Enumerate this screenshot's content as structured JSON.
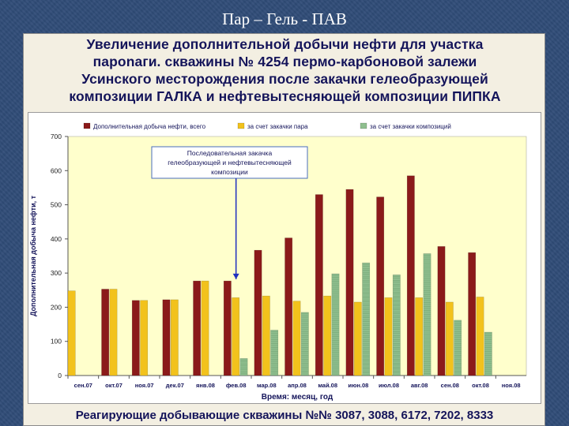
{
  "slide": {
    "title": "Пар – Гель - ПАВ",
    "heading_lines": [
      "Увеличение дополнительной добычи нефти для участка",
      "пароnaги. скважины № 4254 пермо-карбоновой залежи",
      "Усинского месторождения после закачки гелеобразующей",
      "композиции ГАЛКА и нефтевытесняющей композиции ПИПКА"
    ],
    "footer": "Реагирующие добывающие скважины №№ 3087, 3088, 6172, 7202, 8333"
  },
  "colors": {
    "total": "#8b1a1a",
    "steam": "#f2c21c",
    "composition": "#8fbf8f",
    "plot_bg": "#ffffcc",
    "annotation_border": "#4a6ebd",
    "annotation_arrow": "#1f2fbf"
  },
  "chart_data": {
    "type": "bar",
    "title": "",
    "xlabel": "Время: месяц, год",
    "ylabel": "Дополнительная добыча нефти, т",
    "ylim": [
      0,
      700
    ],
    "yticks": [
      0,
      100,
      200,
      300,
      400,
      500,
      600,
      700
    ],
    "grid": false,
    "legend_position": "top",
    "categories": [
      "сен.07",
      "окт.07",
      "ноя.07",
      "дек.07",
      "янв.08",
      "фев.08",
      "мар.08",
      "апр.08",
      "май.08",
      "июн.08",
      "июл.08",
      "авг.08",
      "сен.08",
      "окт.08",
      "ноя.08"
    ],
    "series": [
      {
        "name": "Дополнительная добыча нефти,  всего",
        "color_key": "total",
        "values": [
          null,
          253,
          220,
          222,
          277,
          277,
          367,
          403,
          530,
          545,
          523,
          585,
          378,
          360,
          null
        ]
      },
      {
        "name": "за счет закачки пара",
        "color_key": "steam",
        "values": [
          248,
          253,
          220,
          222,
          277,
          228,
          233,
          218,
          233,
          215,
          228,
          228,
          215,
          230,
          null
        ]
      },
      {
        "name": "за счет закачки композиций",
        "color_key": "composition",
        "values": [
          null,
          null,
          null,
          null,
          null,
          50,
          133,
          185,
          298,
          330,
          295,
          357,
          162,
          127,
          null
        ]
      }
    ],
    "annotation": {
      "text_lines": [
        "Последовательная закачка",
        "гелеобразующей и нефтевытесняющей",
        "композиции"
      ],
      "category": "фев.08"
    }
  }
}
